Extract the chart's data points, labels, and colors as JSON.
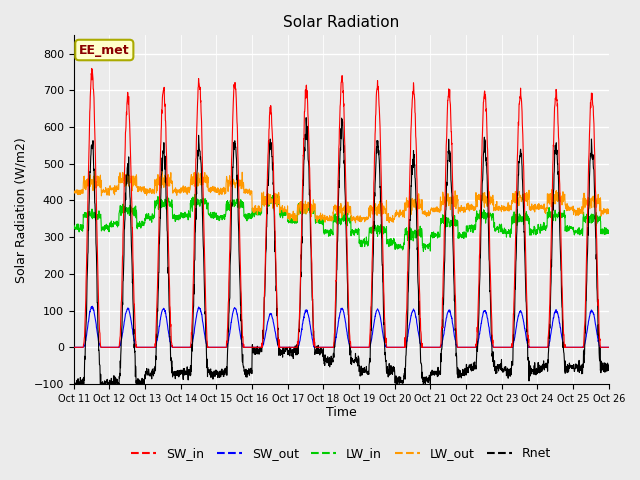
{
  "title": "Solar Radiation",
  "xlabel": "Time",
  "ylabel": "Solar Radiation (W/m2)",
  "ylim": [
    -100,
    850
  ],
  "yticks": [
    -100,
    0,
    100,
    200,
    300,
    400,
    500,
    600,
    700,
    800
  ],
  "xtick_labels": [
    "Oct 11",
    "Oct 12",
    "Oct 13",
    "Oct 14",
    "Oct 15",
    "Oct 16",
    "Oct 17",
    "Oct 18",
    "Oct 19",
    "Oct 20",
    "Oct 21",
    "Oct 22",
    "Oct 23",
    "Oct 24",
    "Oct 25",
    "Oct 26"
  ],
  "annotation": "EE_met",
  "colors": {
    "SW_in": "#ff0000",
    "SW_out": "#0000ff",
    "LW_in": "#00cc00",
    "LW_out": "#ff9900",
    "Rnet": "#000000"
  },
  "bg_color": "#ebebeb",
  "n_days": 15,
  "SW_in_peaks": [
    750,
    680,
    700,
    725,
    720,
    645,
    700,
    730,
    715,
    705,
    700,
    695,
    690,
    695,
    690
  ],
  "SW_out_peaks": [
    110,
    105,
    105,
    108,
    107,
    90,
    100,
    105,
    103,
    102,
    100,
    100,
    98,
    100,
    100
  ],
  "LW_in_base": [
    360,
    370,
    390,
    395,
    390,
    400,
    380,
    350,
    320,
    310,
    340,
    360,
    350,
    360,
    350
  ],
  "LW_out_base": [
    450,
    455,
    450,
    455,
    450,
    400,
    380,
    375,
    375,
    390,
    400,
    405,
    405,
    405,
    395
  ]
}
